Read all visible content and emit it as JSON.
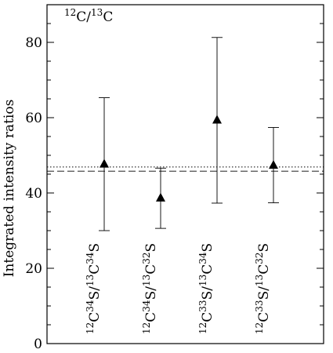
{
  "chart_data": {
    "type": "scatter",
    "title": "",
    "panel_label": {
      "base": "C/C",
      "parts": [
        {
          "sup": "12",
          "text": "C"
        },
        {
          "text": "/"
        },
        {
          "sup": "13",
          "text": "C"
        }
      ]
    },
    "xlabel": "",
    "ylabel": "Integrated intensity ratios",
    "ylim": [
      0,
      90
    ],
    "yticks": [
      0,
      20,
      40,
      60,
      80
    ],
    "grid": false,
    "categories": [
      {
        "label": "12C34S/13C34S",
        "parts": [
          {
            "sup": "12",
            "text": "C"
          },
          {
            "sup": "34",
            "text": "S/"
          },
          {
            "sup": "13",
            "text": "C"
          },
          {
            "sup": "34",
            "text": "S"
          }
        ]
      },
      {
        "label": "12C34S/13C32S",
        "parts": [
          {
            "sup": "12",
            "text": "C"
          },
          {
            "sup": "34",
            "text": "S/"
          },
          {
            "sup": "13",
            "text": "C"
          },
          {
            "sup": "32",
            "text": "S"
          }
        ]
      },
      {
        "label": "12C33S/13C34S",
        "parts": [
          {
            "sup": "12",
            "text": "C"
          },
          {
            "sup": "33",
            "text": "S/"
          },
          {
            "sup": "13",
            "text": "C"
          },
          {
            "sup": "34",
            "text": "S"
          }
        ]
      },
      {
        "label": "12C33S/13C32S",
        "parts": [
          {
            "sup": "12",
            "text": "C"
          },
          {
            "sup": "33",
            "text": "S/"
          },
          {
            "sup": "13",
            "text": "C"
          },
          {
            "sup": "32",
            "text": "S"
          }
        ]
      }
    ],
    "series": [
      {
        "marker": "filled-triangle",
        "values": [
          47.8,
          38.8,
          59.5,
          47.5
        ],
        "error_low": [
          30.0,
          30.6,
          37.3,
          37.4
        ],
        "error_high": [
          65.3,
          46.6,
          81.3,
          57.4
        ]
      }
    ],
    "reference_lines": [
      {
        "style": "dotted",
        "y": 46.9
      },
      {
        "style": "dashed",
        "y": 45.8
      }
    ]
  }
}
